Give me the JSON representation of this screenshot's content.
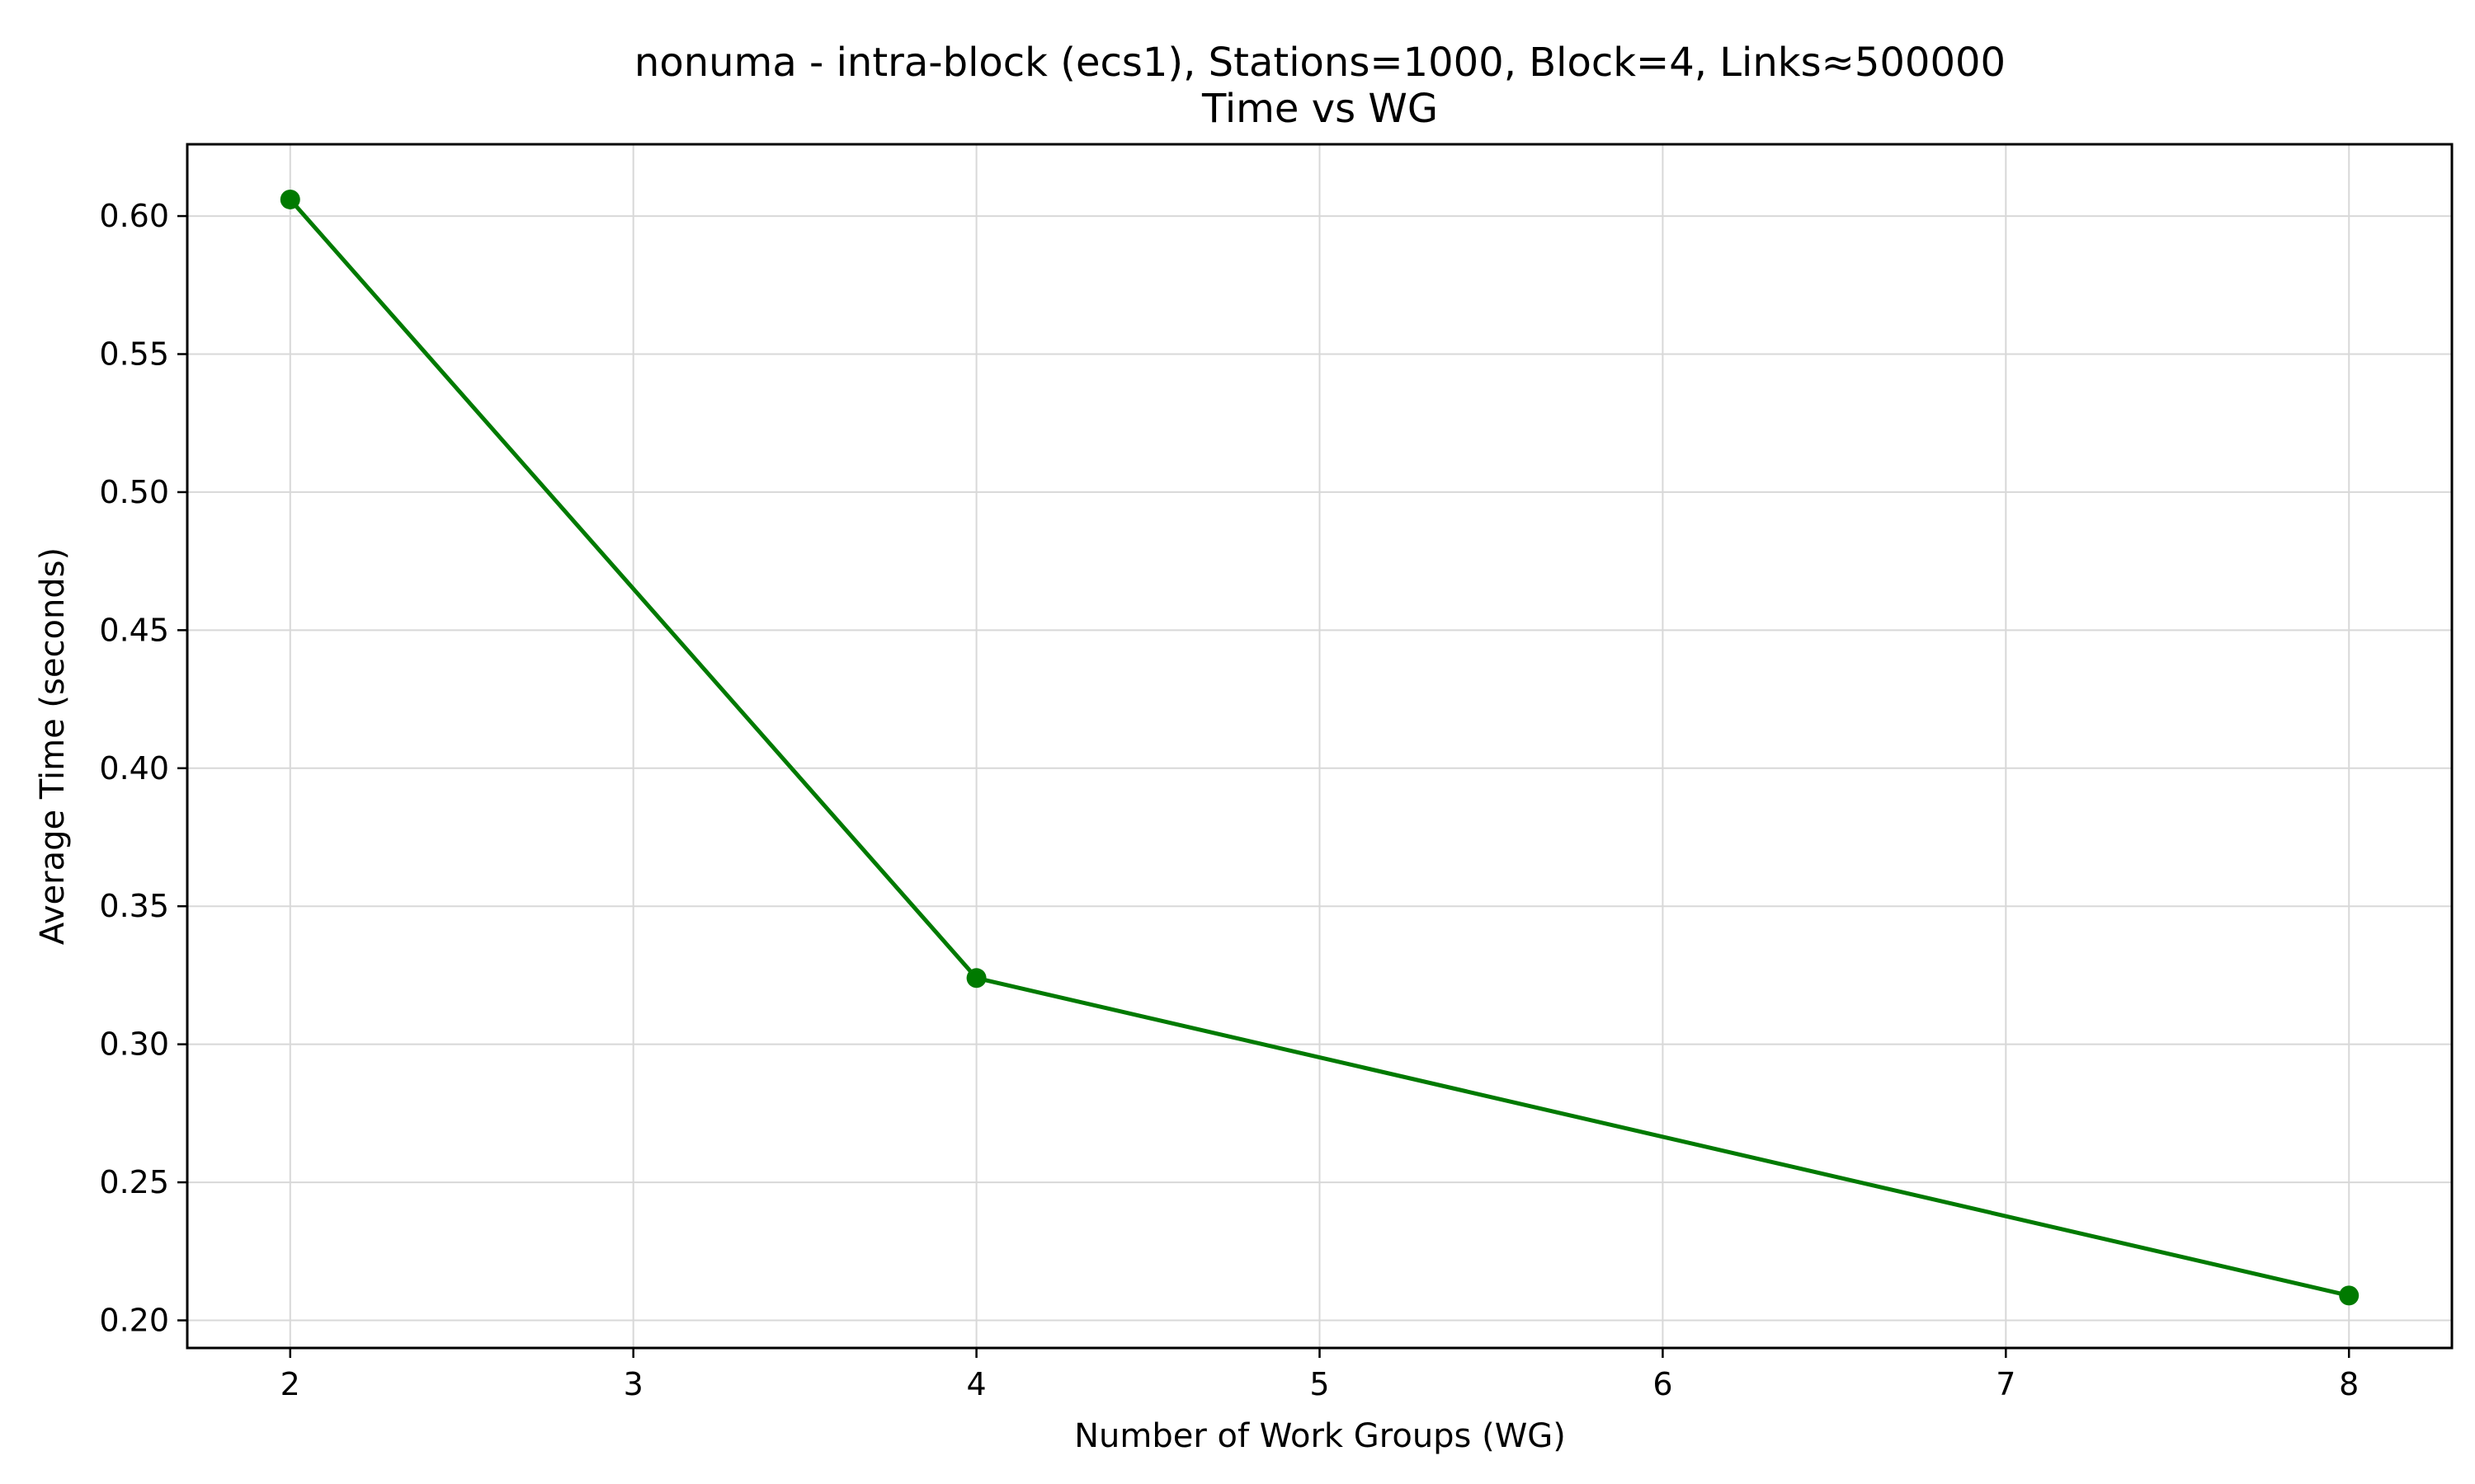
{
  "chart_data": {
    "type": "line",
    "title_lines": [
      "nonuma - intra-block (ecs1), Stations=1000, Block=4, Links≈500000",
      "Time vs WG"
    ],
    "xlabel": "Number of Work Groups (WG)",
    "ylabel": "Average Time (seconds)",
    "xlim": [
      1.7,
      8.3
    ],
    "ylim": [
      0.19,
      0.626
    ],
    "xticks": [
      2,
      3,
      4,
      5,
      6,
      7,
      8
    ],
    "yticks": [
      0.2,
      0.25,
      0.3,
      0.35,
      0.4,
      0.45,
      0.5,
      0.55,
      0.6
    ],
    "grid": true,
    "series": [
      {
        "color": "#007a00",
        "marker": "circle",
        "x": [
          2,
          4,
          8
        ],
        "y": [
          0.606,
          0.324,
          0.209
        ]
      }
    ]
  }
}
